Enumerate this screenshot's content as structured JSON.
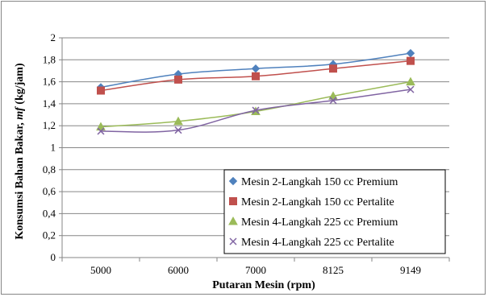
{
  "chart_data": {
    "type": "scatter",
    "xlabel": "Putaran Mesin (rpm)",
    "ylabel_prefix": "Konsumsi Bahan Bakar, ",
    "ylabel_var": "mf",
    "ylabel_unit": " (kg/jam)",
    "categories": [
      "5000",
      "6000",
      "7000",
      "8125",
      "9149"
    ],
    "ylim": [
      0,
      2
    ],
    "yticks": [
      "0",
      "0,2",
      "0,4",
      "0,6",
      "0,8",
      "1",
      "1,2",
      "1,4",
      "1,6",
      "1,8",
      "2"
    ],
    "grid": true,
    "legend_position": "bottom-right",
    "series": [
      {
        "name": "Mesin 2-Langkah 150 cc Premium",
        "color": "#4F81BD",
        "marker": "diamond",
        "values": [
          1.55,
          1.67,
          1.72,
          1.76,
          1.86
        ]
      },
      {
        "name": "Mesin 2-Langkah 150 cc Pertalite",
        "color": "#C0504D",
        "marker": "square",
        "values": [
          1.52,
          1.62,
          1.65,
          1.72,
          1.79
        ]
      },
      {
        "name": "Mesin 4-Langkah 225 cc Premium",
        "color": "#9BBB59",
        "marker": "triangle",
        "values": [
          1.19,
          1.24,
          1.33,
          1.47,
          1.6
        ]
      },
      {
        "name": "Mesin 4-Langkah 225 cc Pertalite",
        "color": "#8064A2",
        "marker": "x",
        "values": [
          1.15,
          1.16,
          1.34,
          1.43,
          1.53
        ]
      }
    ]
  }
}
